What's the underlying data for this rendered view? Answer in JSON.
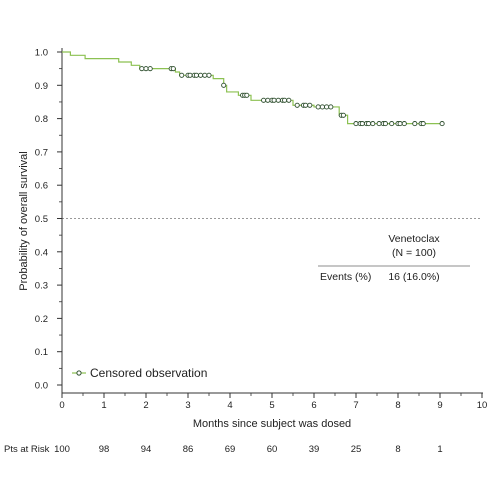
{
  "chart_data": {
    "type": "line",
    "subtype": "kaplan-meier",
    "xlabel": "Months since subject was dosed",
    "ylabel": "Probability of overall survival",
    "xlim": [
      0,
      10
    ],
    "ylim": [
      0.0,
      1.0
    ],
    "x_ticks": [
      "0",
      "1",
      "2",
      "3",
      "4",
      "5",
      "6",
      "7",
      "8",
      "9",
      "10"
    ],
    "y_ticks": [
      "0.0",
      "0.1",
      "0.2",
      "0.3",
      "0.4",
      "0.5",
      "0.6",
      "0.7",
      "0.8",
      "0.9",
      "1.0"
    ],
    "reference_line_y": 0.5,
    "series": [
      {
        "name": "Venetoclax",
        "color": "#8cc152",
        "steps": [
          [
            0,
            1.0
          ],
          [
            0.2,
            0.99
          ],
          [
            0.55,
            0.98
          ],
          [
            1.35,
            0.97
          ],
          [
            1.65,
            0.96
          ],
          [
            1.85,
            0.95
          ],
          [
            2.7,
            0.94
          ],
          [
            2.8,
            0.93
          ],
          [
            3.6,
            0.92
          ],
          [
            3.85,
            0.9
          ],
          [
            3.92,
            0.88
          ],
          [
            4.2,
            0.87
          ],
          [
            4.5,
            0.855
          ],
          [
            5.5,
            0.84
          ],
          [
            6.0,
            0.835
          ],
          [
            6.6,
            0.81
          ],
          [
            6.8,
            0.785
          ],
          [
            9.05,
            0.785
          ]
        ],
        "censored": [
          [
            1.9,
            0.95
          ],
          [
            2.0,
            0.95
          ],
          [
            2.1,
            0.95
          ],
          [
            2.6,
            0.95
          ],
          [
            2.65,
            0.95
          ],
          [
            2.85,
            0.93
          ],
          [
            3.0,
            0.93
          ],
          [
            3.05,
            0.93
          ],
          [
            3.15,
            0.93
          ],
          [
            3.2,
            0.93
          ],
          [
            3.3,
            0.93
          ],
          [
            3.4,
            0.93
          ],
          [
            3.5,
            0.93
          ],
          [
            3.85,
            0.9
          ],
          [
            4.3,
            0.87
          ],
          [
            4.35,
            0.87
          ],
          [
            4.4,
            0.87
          ],
          [
            4.8,
            0.855
          ],
          [
            4.9,
            0.855
          ],
          [
            5.0,
            0.855
          ],
          [
            5.05,
            0.855
          ],
          [
            5.15,
            0.855
          ],
          [
            5.25,
            0.855
          ],
          [
            5.3,
            0.855
          ],
          [
            5.4,
            0.855
          ],
          [
            5.6,
            0.84
          ],
          [
            5.75,
            0.84
          ],
          [
            5.8,
            0.84
          ],
          [
            5.9,
            0.84
          ],
          [
            6.1,
            0.835
          ],
          [
            6.2,
            0.835
          ],
          [
            6.3,
            0.835
          ],
          [
            6.4,
            0.835
          ],
          [
            6.65,
            0.81
          ],
          [
            6.7,
            0.81
          ],
          [
            7.0,
            0.785
          ],
          [
            7.1,
            0.785
          ],
          [
            7.15,
            0.785
          ],
          [
            7.25,
            0.785
          ],
          [
            7.3,
            0.785
          ],
          [
            7.4,
            0.785
          ],
          [
            7.55,
            0.785
          ],
          [
            7.65,
            0.785
          ],
          [
            7.7,
            0.785
          ],
          [
            7.85,
            0.785
          ],
          [
            8.0,
            0.785
          ],
          [
            8.05,
            0.785
          ],
          [
            8.15,
            0.785
          ],
          [
            8.4,
            0.785
          ],
          [
            8.55,
            0.785
          ],
          [
            8.6,
            0.785
          ],
          [
            9.05,
            0.785
          ]
        ]
      }
    ],
    "legend": {
      "label": "Censored observation",
      "placement": "bottom-left"
    },
    "info_box": {
      "group_name": "Venetoclax",
      "group_n": "(N = 100)",
      "events_label": "Events (%)",
      "events_value": "16 (16.0%)"
    },
    "risk_table": {
      "label": "Pts at Risk",
      "x": [
        0,
        1,
        2,
        3,
        4,
        5,
        6,
        7,
        8,
        9
      ],
      "values": [
        "100",
        "98",
        "94",
        "86",
        "69",
        "60",
        "39",
        "25",
        "8",
        "1"
      ]
    }
  }
}
